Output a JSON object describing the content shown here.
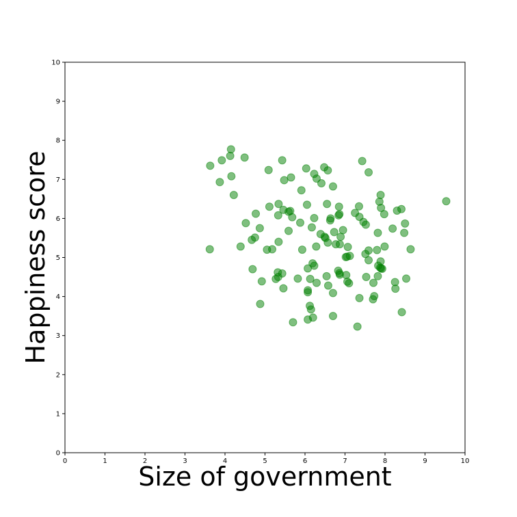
{
  "chart_data": {
    "type": "scatter",
    "title": "",
    "xlabel": "Size of government",
    "ylabel": "Happiness score",
    "xlim": [
      0,
      10
    ],
    "ylim": [
      0,
      10
    ],
    "xticks": [
      "0",
      "1",
      "2",
      "3",
      "4",
      "5",
      "6",
      "7",
      "8",
      "9",
      "10"
    ],
    "yticks": [
      "0",
      "1",
      "2",
      "3",
      "4",
      "5",
      "6",
      "7",
      "8",
      "9",
      "10"
    ],
    "grid": false,
    "legend": "none",
    "marker_color": "#008000",
    "marker_opacity": 0.5,
    "series": [
      {
        "points": [
          [
            4.15,
            7.77
          ],
          [
            4.13,
            7.6
          ],
          [
            3.63,
            7.35
          ],
          [
            3.92,
            7.49
          ],
          [
            4.49,
            7.56
          ],
          [
            3.87,
            6.93
          ],
          [
            4.16,
            7.08
          ],
          [
            4.22,
            6.6
          ],
          [
            5.09,
            7.24
          ],
          [
            5.43,
            7.49
          ],
          [
            5.48,
            6.98
          ],
          [
            5.65,
            7.05
          ],
          [
            6.03,
            7.28
          ],
          [
            6.23,
            7.14
          ],
          [
            6.29,
            7.02
          ],
          [
            6.41,
            6.9
          ],
          [
            6.48,
            7.31
          ],
          [
            6.57,
            7.23
          ],
          [
            6.7,
            6.82
          ],
          [
            7.43,
            7.47
          ],
          [
            7.59,
            7.18
          ],
          [
            5.91,
            6.72
          ],
          [
            7.89,
            6.6
          ],
          [
            7.86,
            6.43
          ],
          [
            9.53,
            6.44
          ],
          [
            5.11,
            6.3
          ],
          [
            5.34,
            6.37
          ],
          [
            5.46,
            6.22
          ],
          [
            5.59,
            6.17
          ],
          [
            5.63,
            6.19
          ],
          [
            5.33,
            6.08
          ],
          [
            5.68,
            6.03
          ],
          [
            6.05,
            6.35
          ],
          [
            6.23,
            6.01
          ],
          [
            6.55,
            6.37
          ],
          [
            6.64,
            6.0
          ],
          [
            6.63,
            5.95
          ],
          [
            6.85,
            6.3
          ],
          [
            6.84,
            6.08
          ],
          [
            6.86,
            6.11
          ],
          [
            7.25,
            6.14
          ],
          [
            7.35,
            6.31
          ],
          [
            7.36,
            6.04
          ],
          [
            7.46,
            5.91
          ],
          [
            7.52,
            5.84
          ],
          [
            7.9,
            6.27
          ],
          [
            7.98,
            6.11
          ],
          [
            8.3,
            6.2
          ],
          [
            8.41,
            6.24
          ],
          [
            8.5,
            5.87
          ],
          [
            4.77,
            6.12
          ],
          [
            4.52,
            5.88
          ],
          [
            4.87,
            5.75
          ],
          [
            5.59,
            5.68
          ],
          [
            5.88,
            5.89
          ],
          [
            6.17,
            5.77
          ],
          [
            6.39,
            5.6
          ],
          [
            6.49,
            5.53
          ],
          [
            6.51,
            5.5
          ],
          [
            6.73,
            5.65
          ],
          [
            6.95,
            5.7
          ],
          [
            6.89,
            5.53
          ],
          [
            6.57,
            5.38
          ],
          [
            6.77,
            5.34
          ],
          [
            6.87,
            5.34
          ],
          [
            7.07,
            5.27
          ],
          [
            7.59,
            5.18
          ],
          [
            7.8,
            5.19
          ],
          [
            7.82,
            5.63
          ],
          [
            7.99,
            5.28
          ],
          [
            8.19,
            5.74
          ],
          [
            8.48,
            5.63
          ],
          [
            8.64,
            5.21
          ],
          [
            4.75,
            5.51
          ],
          [
            4.67,
            5.45
          ],
          [
            3.62,
            5.21
          ],
          [
            4.39,
            5.28
          ],
          [
            5.05,
            5.2
          ],
          [
            5.18,
            5.21
          ],
          [
            5.34,
            5.4
          ],
          [
            5.93,
            5.2
          ],
          [
            6.28,
            5.28
          ],
          [
            7.02,
            5.01
          ],
          [
            7.05,
            5.02
          ],
          [
            7.12,
            5.04
          ],
          [
            7.51,
            5.09
          ],
          [
            7.59,
            4.93
          ],
          [
            7.89,
            4.9
          ],
          [
            7.88,
            4.74
          ],
          [
            7.93,
            4.71
          ],
          [
            7.9,
            4.72
          ],
          [
            7.83,
            4.79
          ],
          [
            4.69,
            4.7
          ],
          [
            4.92,
            4.39
          ],
          [
            5.27,
            4.45
          ],
          [
            5.32,
            4.62
          ],
          [
            5.33,
            4.5
          ],
          [
            5.43,
            4.59
          ],
          [
            5.46,
            4.21
          ],
          [
            5.82,
            4.46
          ],
          [
            6.07,
            4.72
          ],
          [
            6.19,
            4.85
          ],
          [
            6.23,
            4.79
          ],
          [
            6.13,
            4.45
          ],
          [
            6.29,
            4.35
          ],
          [
            6.54,
            4.52
          ],
          [
            6.58,
            4.28
          ],
          [
            6.83,
            4.66
          ],
          [
            6.87,
            4.56
          ],
          [
            6.86,
            4.6
          ],
          [
            7.03,
            4.55
          ],
          [
            7.06,
            4.38
          ],
          [
            7.1,
            4.34
          ],
          [
            7.53,
            4.5
          ],
          [
            7.71,
            4.35
          ],
          [
            7.82,
            4.52
          ],
          [
            8.25,
            4.37
          ],
          [
            8.26,
            4.2
          ],
          [
            8.53,
            4.46
          ],
          [
            6.07,
            4.11
          ],
          [
            6.07,
            4.16
          ],
          [
            6.7,
            4.09
          ],
          [
            7.36,
            3.96
          ],
          [
            7.7,
            3.93
          ],
          [
            7.73,
            4.01
          ],
          [
            4.88,
            3.81
          ],
          [
            6.12,
            3.76
          ],
          [
            6.15,
            3.67
          ],
          [
            6.2,
            3.46
          ],
          [
            6.07,
            3.41
          ],
          [
            5.7,
            3.34
          ],
          [
            6.7,
            3.5
          ],
          [
            7.31,
            3.23
          ],
          [
            8.42,
            3.6
          ]
        ]
      }
    ]
  }
}
